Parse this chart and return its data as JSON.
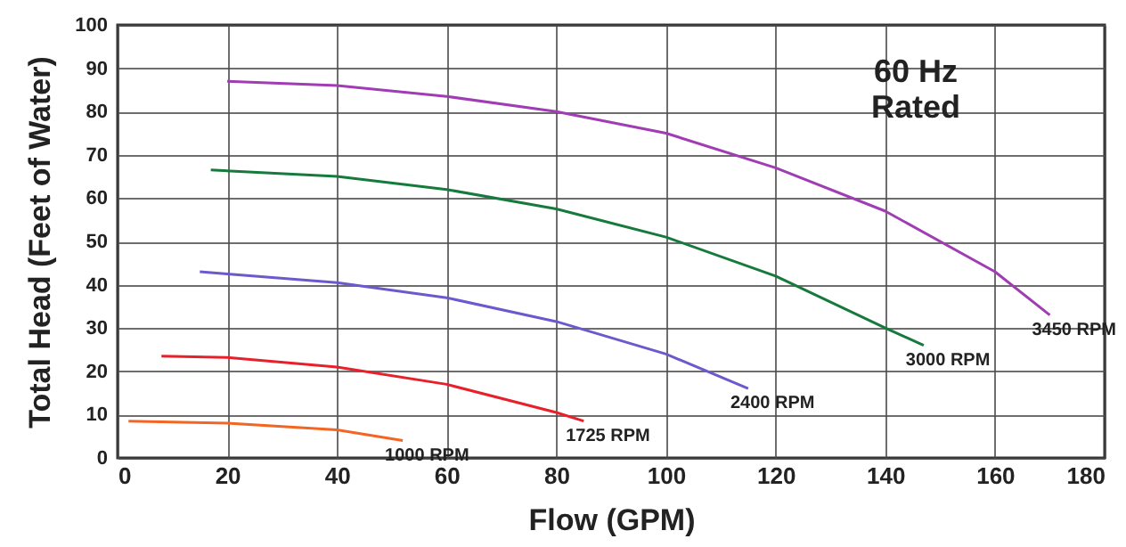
{
  "chart_data": {
    "type": "line",
    "xlabel": "Flow (GPM)",
    "ylabel": "Total Head (Feet of Water)",
    "xlim": [
      0,
      180
    ],
    "xticks": [
      0,
      20,
      40,
      60,
      80,
      100,
      120,
      140,
      160,
      180
    ],
    "ylim": [
      0,
      100
    ],
    "yticks": [
      0,
      10,
      20,
      30,
      40,
      50,
      60,
      70,
      80,
      90,
      100
    ],
    "grid": true,
    "marker": "none",
    "line_style": "solid",
    "annotations": [
      "60 Hz\nRated"
    ],
    "series": [
      {
        "name": "3450 RPM",
        "color": "#a03cb4",
        "x": [
          20,
          40,
          60,
          80,
          100,
          120,
          140,
          160,
          170
        ],
        "values": [
          87,
          86,
          83.5,
          80,
          75,
          67,
          57,
          43,
          33
        ]
      },
      {
        "name": "3000 RPM",
        "color": "#157a3c",
        "x": [
          17,
          40,
          60,
          80,
          100,
          120,
          140,
          147
        ],
        "values": [
          66.5,
          65,
          62,
          57.5,
          51,
          42,
          30,
          26
        ]
      },
      {
        "name": "2400 RPM",
        "color": "#6a5acd",
        "x": [
          15,
          20,
          40,
          60,
          80,
          100,
          115
        ],
        "values": [
          43,
          42.5,
          40.5,
          37,
          31.5,
          24,
          16
        ]
      },
      {
        "name": "1725 RPM",
        "color": "#e8202a",
        "x": [
          8,
          20,
          40,
          60,
          80,
          85
        ],
        "values": [
          23.5,
          23.2,
          21,
          17,
          10.5,
          8.5
        ]
      },
      {
        "name": "1000 RPM",
        "color": "#f26522",
        "x": [
          2,
          20,
          40,
          52
        ],
        "values": [
          8.5,
          8,
          6.5,
          4
        ]
      }
    ]
  }
}
